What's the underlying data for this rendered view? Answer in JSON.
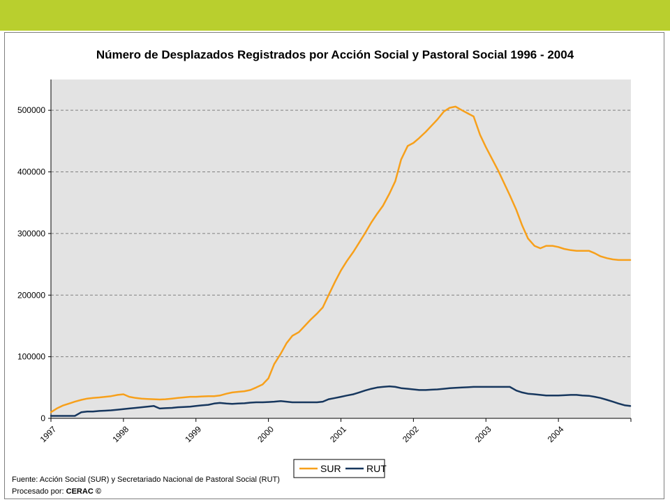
{
  "header": {
    "bar_color": "#b9cf2e"
  },
  "footer": {
    "source_text": "Fuente: Acción Social (SUR) y Secretariado Nacional de Pastoral Social (RUT)",
    "processed_label": "Procesado por: ",
    "processed_by": "CERAC ©"
  },
  "chart_data": {
    "type": "line",
    "title": "Número de Desplazados Registrados por Acción Social y Pastoral Social 1996 - 2004",
    "xlabel": "",
    "ylabel": "",
    "xlim": [
      1997,
      2005
    ],
    "ylim": [
      0,
      550000
    ],
    "y_ticks": [
      0,
      100000,
      200000,
      300000,
      400000,
      500000
    ],
    "y_tick_labels": [
      "0",
      "100000",
      "200000",
      "300000",
      "400000",
      "500000"
    ],
    "x_ticks": [
      1997,
      1998,
      1999,
      2000,
      2001,
      2002,
      2003,
      2004,
      2005
    ],
    "x_tick_labels": [
      "1997",
      "1998",
      "1999",
      "2000",
      "2001",
      "2002",
      "2003",
      "2004",
      ""
    ],
    "grid": "horizontal",
    "plot_background": "#e3e3e3",
    "legend_position": "bottom",
    "series": [
      {
        "name": "SUR",
        "color": "#f7a01b",
        "x": [
          1997.0,
          1997.08,
          1997.17,
          1997.25,
          1997.33,
          1997.42,
          1997.5,
          1997.58,
          1997.67,
          1997.75,
          1997.83,
          1997.92,
          1998.0,
          1998.08,
          1998.17,
          1998.25,
          1998.33,
          1998.42,
          1998.5,
          1998.58,
          1998.67,
          1998.75,
          1998.83,
          1998.92,
          1999.0,
          1999.08,
          1999.17,
          1999.25,
          1999.33,
          1999.42,
          1999.5,
          1999.58,
          1999.67,
          1999.75,
          1999.83,
          1999.92,
          2000.0,
          2000.08,
          2000.17,
          2000.25,
          2000.33,
          2000.42,
          2000.5,
          2000.58,
          2000.67,
          2000.75,
          2000.83,
          2000.92,
          2001.0,
          2001.08,
          2001.17,
          2001.25,
          2001.33,
          2001.42,
          2001.5,
          2001.58,
          2001.67,
          2001.75,
          2001.83,
          2001.92,
          2002.0,
          2002.08,
          2002.17,
          2002.25,
          2002.33,
          2002.42,
          2002.5,
          2002.58,
          2002.67,
          2002.75,
          2002.83,
          2002.92,
          2003.0,
          2003.08,
          2003.17,
          2003.25,
          2003.33,
          2003.42,
          2003.5,
          2003.58,
          2003.67,
          2003.75,
          2003.83,
          2003.92,
          2004.0,
          2004.08,
          2004.17,
          2004.25,
          2004.33,
          2004.42,
          2004.5,
          2004.58,
          2004.67,
          2004.75,
          2004.83,
          2004.92,
          2004.99
        ],
        "values": [
          10000,
          16000,
          21000,
          24000,
          27000,
          30000,
          32000,
          33000,
          34000,
          35000,
          36000,
          38000,
          39000,
          35000,
          33000,
          32000,
          31500,
          31000,
          30500,
          31000,
          32000,
          33000,
          34000,
          35000,
          35000,
          35500,
          36000,
          36000,
          37000,
          40000,
          42000,
          43000,
          44000,
          46000,
          50000,
          55000,
          65000,
          88000,
          105000,
          122000,
          134000,
          140000,
          150000,
          160000,
          170000,
          180000,
          200000,
          222000,
          240000,
          255000,
          270000,
          285000,
          300000,
          318000,
          332000,
          345000,
          365000,
          385000,
          420000,
          442000,
          447000,
          455000,
          465000,
          475000,
          485000,
          498000,
          504000,
          506000,
          500000,
          495000,
          490000,
          460000,
          440000,
          422000,
          402000,
          382000,
          362000,
          338000,
          313000,
          292000,
          280000,
          276000,
          280000,
          280000,
          278000,
          275000,
          273000,
          272000,
          272000,
          272000,
          268000,
          263000,
          260000,
          258000,
          257000,
          257000,
          257000
        ]
      },
      {
        "name": "RUT",
        "color": "#17375e",
        "x": [
          1997.0,
          1997.08,
          1997.17,
          1997.25,
          1997.33,
          1997.42,
          1997.5,
          1997.58,
          1997.67,
          1997.75,
          1997.83,
          1997.92,
          1998.0,
          1998.08,
          1998.17,
          1998.25,
          1998.33,
          1998.42,
          1998.5,
          1998.58,
          1998.67,
          1998.75,
          1998.83,
          1998.92,
          1999.0,
          1999.08,
          1999.17,
          1999.25,
          1999.33,
          1999.42,
          1999.5,
          1999.58,
          1999.67,
          1999.75,
          1999.83,
          1999.92,
          2000.0,
          2000.08,
          2000.17,
          2000.25,
          2000.33,
          2000.42,
          2000.5,
          2000.58,
          2000.67,
          2000.75,
          2000.83,
          2000.92,
          2001.0,
          2001.08,
          2001.17,
          2001.25,
          2001.33,
          2001.42,
          2001.5,
          2001.58,
          2001.67,
          2001.75,
          2001.83,
          2001.92,
          2002.0,
          2002.08,
          2002.17,
          2002.25,
          2002.33,
          2002.42,
          2002.5,
          2002.58,
          2002.67,
          2002.75,
          2002.83,
          2002.92,
          2003.0,
          2003.08,
          2003.17,
          2003.25,
          2003.33,
          2003.42,
          2003.5,
          2003.58,
          2003.67,
          2003.75,
          2003.83,
          2003.92,
          2004.0,
          2004.08,
          2004.17,
          2004.25,
          2004.33,
          2004.42,
          2004.5,
          2004.58,
          2004.67,
          2004.75,
          2004.83,
          2004.92,
          2004.99
        ],
        "values": [
          4000,
          4000,
          4000,
          4000,
          4000,
          10000,
          11000,
          11000,
          12000,
          12500,
          13000,
          14000,
          15000,
          16000,
          17000,
          18000,
          19000,
          20000,
          16000,
          16500,
          17000,
          18000,
          18500,
          19000,
          20000,
          21000,
          22000,
          24000,
          25000,
          24000,
          23500,
          24000,
          24500,
          25500,
          26000,
          26000,
          26500,
          27000,
          28000,
          27000,
          26000,
          26000,
          26000,
          26000,
          26000,
          27000,
          31000,
          33000,
          35000,
          37000,
          39000,
          42000,
          45000,
          48000,
          50000,
          51000,
          52000,
          51000,
          49000,
          48000,
          47000,
          46000,
          46000,
          46500,
          47000,
          48000,
          49000,
          49500,
          50000,
          50500,
          51000,
          51000,
          51000,
          51000,
          51000,
          51000,
          51000,
          45000,
          42000,
          40000,
          39000,
          38000,
          37000,
          37000,
          37000,
          37500,
          38000,
          38000,
          37000,
          36500,
          35000,
          33000,
          30000,
          27000,
          24000,
          21000,
          20000
        ]
      }
    ]
  }
}
